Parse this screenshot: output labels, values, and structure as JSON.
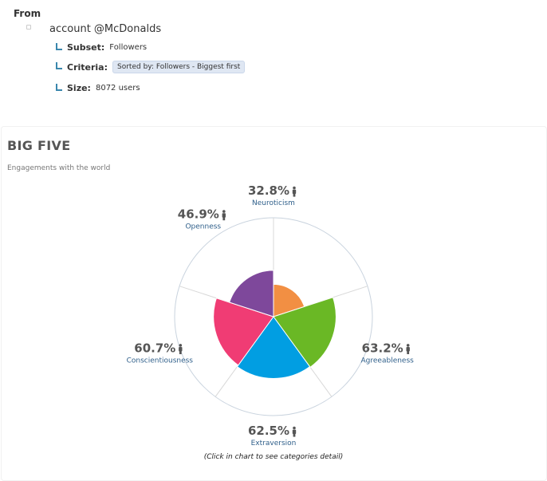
{
  "from": {
    "title": "From",
    "account": "account @McDonalds",
    "subset_label": "Subset:",
    "subset_value": "Followers",
    "criteria_label": "Criteria:",
    "criteria_value": "Sorted by: Followers - Biggest first",
    "size_label": "Size:",
    "size_value": "8072 users"
  },
  "panel": {
    "title": "BIG FIVE",
    "subtitle": "Engagements with the world",
    "footer": "(Click in chart to see categories detail)"
  },
  "chart_data": {
    "type": "polar-area",
    "title": "BIG FIVE",
    "subtitle": "Engagements with the world",
    "rmax": 100,
    "categories": [
      "Neuroticism",
      "Agreeableness",
      "Extraversion",
      "Conscientiousness",
      "Openness"
    ],
    "values": [
      32.8,
      63.2,
      62.5,
      60.7,
      46.9
    ],
    "value_labels": [
      "32.8%",
      "63.2%",
      "62.5%",
      "60.7%",
      "46.9%"
    ],
    "colors": [
      "#f28f43",
      "#6ab825",
      "#019ee2",
      "#f03c74",
      "#7e489b"
    ],
    "label_icon": "person-icon"
  }
}
